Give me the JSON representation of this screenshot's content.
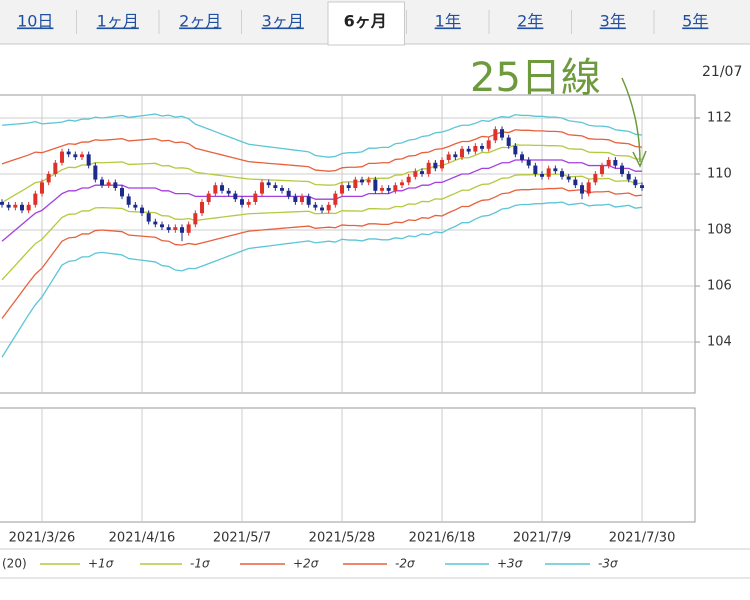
{
  "tabs": [
    {
      "label": "10日"
    },
    {
      "label": "1ヶ月"
    },
    {
      "label": "2ヶ月"
    },
    {
      "label": "3ヶ月"
    },
    {
      "label": "6ヶ月",
      "active": true
    },
    {
      "label": "1年"
    },
    {
      "label": "2年"
    },
    {
      "label": "3年"
    },
    {
      "label": "5年"
    }
  ],
  "chart_data": {
    "type": "candlestick",
    "annotation": "25日線",
    "corner_label": "21/07",
    "categories": [
      null,
      null,
      null,
      null,
      null,
      null,
      "2021/3/26",
      null,
      null,
      null,
      null,
      null,
      null,
      null,
      null,
      null,
      null,
      null,
      null,
      null,
      null,
      "2021/4/16",
      null,
      null,
      null,
      null,
      null,
      null,
      null,
      null,
      null,
      null,
      null,
      null,
      null,
      null,
      "2021/5/7",
      null,
      null,
      null,
      null,
      null,
      null,
      null,
      null,
      null,
      null,
      null,
      null,
      null,
      null,
      "2021/5/28",
      null,
      null,
      null,
      null,
      null,
      null,
      null,
      null,
      null,
      null,
      null,
      null,
      null,
      null,
      "2021/6/18",
      null,
      null,
      null,
      null,
      null,
      null,
      null,
      null,
      null,
      null,
      null,
      null,
      null,
      null,
      "2021/7/9",
      null,
      null,
      null,
      null,
      null,
      null,
      null,
      null,
      null,
      null,
      null,
      null,
      null,
      null,
      "2021/7/30"
    ],
    "open": [
      109.0,
      108.9,
      108.8,
      108.9,
      108.7,
      108.9,
      109.3,
      109.7,
      110.0,
      110.4,
      110.8,
      110.7,
      110.6,
      110.7,
      110.3,
      109.8,
      109.6,
      109.7,
      109.5,
      109.2,
      108.9,
      108.8,
      108.6,
      108.3,
      108.2,
      108.1,
      108.0,
      108.1,
      107.9,
      108.2,
      108.6,
      109.0,
      109.3,
      109.6,
      109.4,
      109.3,
      109.1,
      108.9,
      109.0,
      109.3,
      109.7,
      109.6,
      109.5,
      109.4,
      109.2,
      109.0,
      109.2,
      108.9,
      108.8,
      108.7,
      108.9,
      109.3,
      109.6,
      109.5,
      109.8,
      109.7,
      109.8,
      109.4,
      109.5,
      109.4,
      109.6,
      109.7,
      109.9,
      110.1,
      110.0,
      110.4,
      110.2,
      110.5,
      110.7,
      110.6,
      110.9,
      110.8,
      111.0,
      110.9,
      111.2,
      111.6,
      111.3,
      111.0,
      110.7,
      110.5,
      110.3,
      110.0,
      109.9,
      110.2,
      110.1,
      109.9,
      109.8,
      109.6,
      109.3,
      109.7,
      110.0,
      110.3,
      110.5,
      110.3,
      110.0,
      109.8,
      109.6
    ],
    "high": [
      109.1,
      109.0,
      109.0,
      109.0,
      109.0,
      109.4,
      109.8,
      110.1,
      110.5,
      110.9,
      110.9,
      110.8,
      110.8,
      110.8,
      110.4,
      109.9,
      109.8,
      109.8,
      109.6,
      109.3,
      109.0,
      108.9,
      108.7,
      108.4,
      108.3,
      108.2,
      108.2,
      108.2,
      108.3,
      108.7,
      109.1,
      109.4,
      109.7,
      109.7,
      109.5,
      109.4,
      109.2,
      109.1,
      109.4,
      109.8,
      109.8,
      109.7,
      109.6,
      109.5,
      109.3,
      109.3,
      109.3,
      109.0,
      108.9,
      109.0,
      109.4,
      109.7,
      109.7,
      109.9,
      109.9,
      109.9,
      109.9,
      109.6,
      109.6,
      109.7,
      109.8,
      110.0,
      110.2,
      110.2,
      110.5,
      110.5,
      110.6,
      110.8,
      110.8,
      111.0,
      111.0,
      111.1,
      111.1,
      111.3,
      111.7,
      111.7,
      111.4,
      111.1,
      110.8,
      110.6,
      110.4,
      110.1,
      110.3,
      110.3,
      110.2,
      110.0,
      109.9,
      109.7,
      109.8,
      110.1,
      110.4,
      110.6,
      110.6,
      110.4,
      110.1,
      109.9,
      109.7
    ],
    "low": [
      108.8,
      108.7,
      108.7,
      108.6,
      108.6,
      108.8,
      109.2,
      109.6,
      109.9,
      110.3,
      110.6,
      110.5,
      110.5,
      110.2,
      109.7,
      109.5,
      109.5,
      109.4,
      109.1,
      108.8,
      108.7,
      108.5,
      108.2,
      108.1,
      108.0,
      107.9,
      107.9,
      107.6,
      107.8,
      108.1,
      108.5,
      108.9,
      109.2,
      109.3,
      109.2,
      109.0,
      108.8,
      108.8,
      108.9,
      109.2,
      109.5,
      109.4,
      109.3,
      109.1,
      108.9,
      108.9,
      108.8,
      108.7,
      108.6,
      108.6,
      108.8,
      109.2,
      109.4,
      109.4,
      109.6,
      109.6,
      109.3,
      109.3,
      109.3,
      109.3,
      109.5,
      109.6,
      109.8,
      109.9,
      109.9,
      110.1,
      110.1,
      110.4,
      110.5,
      110.5,
      110.7,
      110.7,
      110.8,
      110.8,
      111.1,
      111.2,
      110.9,
      110.6,
      110.4,
      110.2,
      109.9,
      109.8,
      109.8,
      110.0,
      109.8,
      109.7,
      109.5,
      109.1,
      109.2,
      109.6,
      109.9,
      110.2,
      110.2,
      109.9,
      109.7,
      109.5,
      109.4
    ],
    "close": [
      108.9,
      108.8,
      108.9,
      108.7,
      108.9,
      109.3,
      109.7,
      110.0,
      110.4,
      110.8,
      110.7,
      110.6,
      110.7,
      110.3,
      109.8,
      109.6,
      109.7,
      109.5,
      109.2,
      108.9,
      108.8,
      108.6,
      108.3,
      108.2,
      108.1,
      108.0,
      108.1,
      107.9,
      108.2,
      108.6,
      109.0,
      109.3,
      109.6,
      109.4,
      109.3,
      109.1,
      108.9,
      109.0,
      109.3,
      109.7,
      109.6,
      109.5,
      109.4,
      109.2,
      109.0,
      109.2,
      108.9,
      108.8,
      108.7,
      108.9,
      109.3,
      109.6,
      109.5,
      109.8,
      109.7,
      109.8,
      109.4,
      109.5,
      109.4,
      109.6,
      109.7,
      109.9,
      110.1,
      110.0,
      110.4,
      110.2,
      110.5,
      110.7,
      110.6,
      110.9,
      110.8,
      111.0,
      110.9,
      111.2,
      111.6,
      111.3,
      111.0,
      110.7,
      110.5,
      110.3,
      110.0,
      109.9,
      110.2,
      110.1,
      109.9,
      109.8,
      109.6,
      109.3,
      109.7,
      110.0,
      110.3,
      110.5,
      110.3,
      110.0,
      109.8,
      109.6,
      109.5
    ],
    "up_color": "#e0302a",
    "down_color": "#1c2a8c",
    "series": [
      {
        "name": "(20)",
        "color": "#a53fe0",
        "values": [
          107.6,
          107.8,
          108.0,
          108.2,
          108.4,
          108.6,
          108.7,
          108.9,
          109.1,
          109.3,
          109.4,
          109.4,
          109.5,
          109.5,
          109.6,
          109.6,
          109.6,
          109.6,
          109.6,
          109.5,
          109.5,
          109.5,
          109.5,
          109.5,
          109.4,
          109.4,
          109.3,
          109.3,
          109.3,
          109.2,
          109.2,
          109.2,
          109.2,
          109.2,
          109.2,
          109.2,
          109.2,
          109.2,
          109.2,
          109.2,
          109.2,
          109.2,
          109.2,
          109.2,
          109.2,
          109.2,
          109.2,
          109.1,
          109.1,
          109.1,
          109.1,
          109.2,
          109.2,
          109.2,
          109.2,
          109.3,
          109.3,
          109.3,
          109.3,
          109.4,
          109.4,
          109.5,
          109.5,
          109.6,
          109.6,
          109.7,
          109.7,
          109.8,
          109.9,
          110.0,
          110.0,
          110.1,
          110.2,
          110.2,
          110.3,
          110.4,
          110.4,
          110.5,
          110.5,
          110.5,
          110.5,
          110.5,
          110.5,
          110.5,
          110.5,
          110.4,
          110.4,
          110.4,
          110.3,
          110.3,
          110.3,
          110.3,
          110.2,
          110.2,
          110.2,
          110.1,
          110.1
        ]
      },
      {
        "name": "+1σ",
        "color": "#b5c93e",
        "values": [
          108.98,
          109.12,
          109.26,
          109.4,
          109.54,
          109.69,
          109.73,
          109.87,
          110.01,
          110.15,
          110.24,
          110.23,
          110.32,
          110.32,
          110.41,
          110.4,
          110.41,
          110.42,
          110.43,
          110.34,
          110.35,
          110.36,
          110.37,
          110.38,
          110.29,
          110.3,
          110.21,
          110.22,
          110.19,
          110.06,
          110.03,
          110.0,
          109.97,
          109.94,
          109.91,
          109.88,
          109.85,
          109.82,
          109.81,
          109.8,
          109.79,
          109.78,
          109.77,
          109.76,
          109.75,
          109.74,
          109.73,
          109.62,
          109.61,
          109.6,
          109.61,
          109.71,
          109.72,
          109.72,
          109.73,
          109.84,
          109.84,
          109.85,
          109.85,
          109.96,
          109.97,
          110.07,
          110.08,
          110.18,
          110.19,
          110.29,
          110.3,
          110.39,
          110.49,
          110.58,
          110.58,
          110.67,
          110.77,
          110.76,
          110.86,
          110.95,
          110.94,
          111.04,
          111.03,
          111.03,
          111.02,
          111.02,
          111.01,
          111.01,
          111.0,
          110.9,
          110.89,
          110.88,
          110.78,
          110.77,
          110.77,
          110.76,
          110.66,
          110.65,
          110.64,
          110.54,
          110.53
        ]
      },
      {
        "name": "-1σ",
        "color": "#b5c93e",
        "values": [
          106.22,
          106.48,
          106.74,
          107.0,
          107.26,
          107.51,
          107.67,
          107.93,
          108.19,
          108.45,
          108.56,
          108.57,
          108.68,
          108.68,
          108.79,
          108.8,
          108.79,
          108.78,
          108.77,
          108.66,
          108.65,
          108.64,
          108.63,
          108.62,
          108.51,
          108.5,
          108.39,
          108.38,
          108.41,
          108.34,
          108.37,
          108.4,
          108.43,
          108.46,
          108.49,
          108.52,
          108.55,
          108.58,
          108.59,
          108.6,
          108.61,
          108.62,
          108.63,
          108.64,
          108.65,
          108.66,
          108.67,
          108.58,
          108.59,
          108.6,
          108.59,
          108.69,
          108.68,
          108.68,
          108.67,
          108.76,
          108.76,
          108.75,
          108.75,
          108.84,
          108.83,
          108.93,
          108.92,
          109.02,
          109.01,
          109.11,
          109.1,
          109.21,
          109.31,
          109.42,
          109.42,
          109.53,
          109.63,
          109.64,
          109.74,
          109.85,
          109.86,
          109.96,
          109.97,
          109.97,
          109.98,
          109.98,
          109.99,
          109.99,
          110.0,
          109.9,
          109.91,
          109.92,
          109.82,
          109.83,
          109.83,
          109.84,
          109.74,
          109.75,
          109.76,
          109.66,
          109.67
        ]
      },
      {
        "name": "+2σ",
        "color": "#e8603c",
        "values": [
          110.36,
          110.44,
          110.52,
          110.6,
          110.68,
          110.78,
          110.76,
          110.84,
          110.92,
          111.0,
          111.08,
          111.06,
          111.14,
          111.14,
          111.22,
          111.2,
          111.22,
          111.24,
          111.26,
          111.18,
          111.2,
          111.22,
          111.24,
          111.26,
          111.18,
          111.2,
          111.12,
          111.14,
          111.08,
          110.92,
          110.86,
          110.8,
          110.74,
          110.68,
          110.62,
          110.56,
          110.5,
          110.44,
          110.42,
          110.4,
          110.38,
          110.36,
          110.34,
          110.32,
          110.3,
          110.28,
          110.26,
          110.14,
          110.12,
          110.1,
          110.12,
          110.22,
          110.24,
          110.24,
          110.26,
          110.38,
          110.38,
          110.4,
          110.4,
          110.52,
          110.54,
          110.64,
          110.66,
          110.76,
          110.78,
          110.88,
          110.9,
          110.98,
          111.08,
          111.16,
          111.16,
          111.24,
          111.34,
          111.32,
          111.42,
          111.5,
          111.48,
          111.58,
          111.56,
          111.56,
          111.54,
          111.54,
          111.52,
          111.52,
          111.5,
          111.4,
          111.38,
          111.36,
          111.26,
          111.24,
          111.24,
          111.22,
          111.12,
          111.1,
          111.08,
          110.98,
          110.96
        ]
      },
      {
        "name": "-2σ",
        "color": "#e8603c",
        "values": [
          104.84,
          105.16,
          105.48,
          105.8,
          106.12,
          106.42,
          106.64,
          106.96,
          107.28,
          107.6,
          107.72,
          107.74,
          107.86,
          107.86,
          107.98,
          108.0,
          107.98,
          107.96,
          107.94,
          107.82,
          107.8,
          107.78,
          107.76,
          107.74,
          107.62,
          107.6,
          107.48,
          107.46,
          107.52,
          107.48,
          107.54,
          107.6,
          107.66,
          107.72,
          107.78,
          107.84,
          107.9,
          107.96,
          107.98,
          108.0,
          108.02,
          108.04,
          108.06,
          108.08,
          108.1,
          108.12,
          108.14,
          108.06,
          108.08,
          108.1,
          108.08,
          108.18,
          108.16,
          108.16,
          108.14,
          108.22,
          108.22,
          108.2,
          108.2,
          108.28,
          108.26,
          108.36,
          108.34,
          108.44,
          108.42,
          108.52,
          108.5,
          108.62,
          108.72,
          108.84,
          108.84,
          108.96,
          109.06,
          109.08,
          109.18,
          109.3,
          109.32,
          109.42,
          109.44,
          109.44,
          109.46,
          109.46,
          109.48,
          109.48,
          109.5,
          109.4,
          109.42,
          109.44,
          109.34,
          109.36,
          109.36,
          109.38,
          109.28,
          109.3,
          109.32,
          109.22,
          109.24
        ]
      },
      {
        "name": "+3σ",
        "color": "#5cc6d6",
        "values": [
          111.74,
          111.76,
          111.78,
          111.8,
          111.82,
          111.87,
          111.79,
          111.81,
          111.83,
          111.85,
          111.92,
          111.89,
          111.96,
          111.96,
          112.03,
          112.0,
          112.03,
          112.06,
          112.09,
          112.02,
          112.05,
          112.08,
          112.11,
          112.14,
          112.07,
          112.1,
          112.03,
          112.06,
          111.97,
          111.78,
          111.69,
          111.6,
          111.51,
          111.42,
          111.33,
          111.24,
          111.15,
          111.06,
          111.03,
          111.0,
          110.97,
          110.94,
          110.91,
          110.88,
          110.85,
          110.82,
          110.79,
          110.66,
          110.63,
          110.6,
          110.63,
          110.73,
          110.76,
          110.76,
          110.79,
          110.92,
          110.92,
          110.95,
          110.95,
          111.08,
          111.11,
          111.21,
          111.24,
          111.34,
          111.37,
          111.47,
          111.5,
          111.57,
          111.67,
          111.74,
          111.74,
          111.81,
          111.91,
          111.88,
          111.98,
          112.05,
          112.02,
          112.12,
          112.09,
          112.09,
          112.06,
          112.06,
          112.03,
          112.03,
          112.0,
          111.9,
          111.87,
          111.84,
          111.74,
          111.71,
          111.71,
          111.68,
          111.58,
          111.55,
          111.52,
          111.42,
          111.39
        ]
      },
      {
        "name": "-3σ",
        "color": "#5cc6d6",
        "values": [
          103.46,
          103.84,
          104.22,
          104.6,
          104.98,
          105.33,
          105.61,
          105.99,
          106.37,
          106.75,
          106.88,
          106.91,
          107.04,
          107.04,
          107.17,
          107.2,
          107.17,
          107.14,
          107.11,
          106.98,
          106.95,
          106.92,
          106.89,
          106.86,
          106.73,
          106.7,
          106.57,
          106.54,
          106.63,
          106.62,
          106.71,
          106.8,
          106.89,
          106.98,
          107.07,
          107.16,
          107.25,
          107.34,
          107.37,
          107.4,
          107.43,
          107.46,
          107.49,
          107.52,
          107.55,
          107.58,
          107.61,
          107.54,
          107.57,
          107.6,
          107.57,
          107.67,
          107.64,
          107.64,
          107.61,
          107.68,
          107.68,
          107.65,
          107.65,
          107.72,
          107.69,
          107.79,
          107.76,
          107.86,
          107.83,
          107.93,
          107.9,
          108.03,
          108.13,
          108.26,
          108.26,
          108.39,
          108.49,
          108.52,
          108.62,
          108.75,
          108.78,
          108.88,
          108.91,
          108.91,
          108.94,
          108.94,
          108.97,
          108.97,
          109.0,
          108.9,
          108.93,
          108.96,
          108.86,
          108.89,
          108.89,
          108.92,
          108.82,
          108.85,
          108.88,
          108.78,
          108.81
        ]
      }
    ],
    "ylim": [
      102.18,
      112.82
    ],
    "yticks": [
      104,
      106,
      108,
      110,
      112
    ],
    "grid": true
  }
}
